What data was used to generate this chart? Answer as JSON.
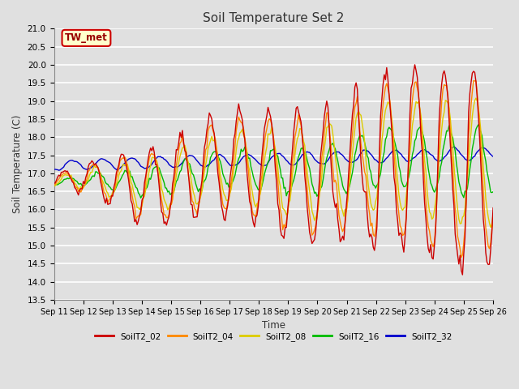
{
  "title": "Soil Temperature Set 2",
  "xlabel": "Time",
  "ylabel": "Soil Temperature (C)",
  "ylim": [
    13.5,
    21.0
  ],
  "yticks": [
    13.5,
    14.0,
    14.5,
    15.0,
    15.5,
    16.0,
    16.5,
    17.0,
    17.5,
    18.0,
    18.5,
    19.0,
    19.5,
    20.0,
    20.5,
    21.0
  ],
  "xtick_labels": [
    "Sep 11",
    "Sep 12",
    "Sep 13",
    "Sep 14",
    "Sep 15",
    "Sep 16",
    "Sep 17",
    "Sep 18",
    "Sep 19",
    "Sep 20",
    "Sep 21",
    "Sep 22",
    "Sep 23",
    "Sep 24",
    "Sep 25",
    "Sep 26"
  ],
  "series_colors": {
    "SoilT2_02": "#cc0000",
    "SoilT2_04": "#ff8800",
    "SoilT2_08": "#ddcc00",
    "SoilT2_16": "#00bb00",
    "SoilT2_32": "#0000cc"
  },
  "series_order": [
    "SoilT2_32",
    "SoilT2_16",
    "SoilT2_08",
    "SoilT2_04",
    "SoilT2_02"
  ],
  "legend_order": [
    "SoilT2_02",
    "SoilT2_04",
    "SoilT2_08",
    "SoilT2_16",
    "SoilT2_32"
  ],
  "plot_bg_color": "#e0e0e0",
  "grid_color": "#ffffff",
  "annotation_text": "TW_met",
  "annotation_bg": "#ffffcc",
  "annotation_border": "#cc0000",
  "figsize": [
    6.4,
    4.8
  ],
  "dpi": 100
}
